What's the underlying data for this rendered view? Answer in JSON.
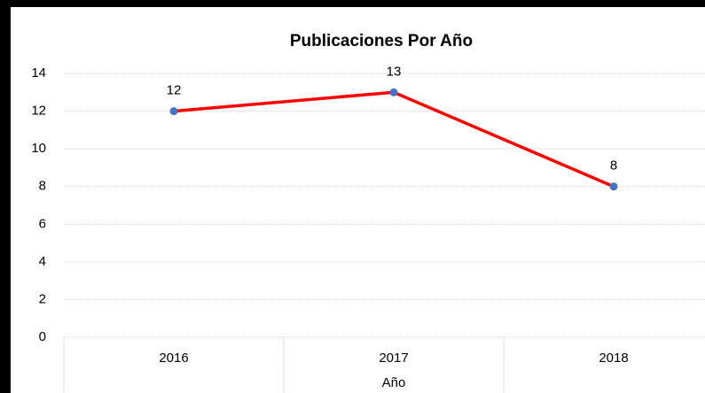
{
  "chart_data": {
    "type": "line",
    "title": "Publicaciones Por Año",
    "xlabel": "Año",
    "categories": [
      "2016",
      "2017",
      "2018"
    ],
    "series": [
      {
        "name": "Publicaciones",
        "color": "#ff0000",
        "marker_color": "#4472c4",
        "values": [
          12,
          13,
          8
        ]
      }
    ],
    "ylim": [
      0,
      14
    ],
    "yticks": [
      0,
      2,
      4,
      6,
      8,
      10,
      12,
      14
    ],
    "grid": true
  }
}
